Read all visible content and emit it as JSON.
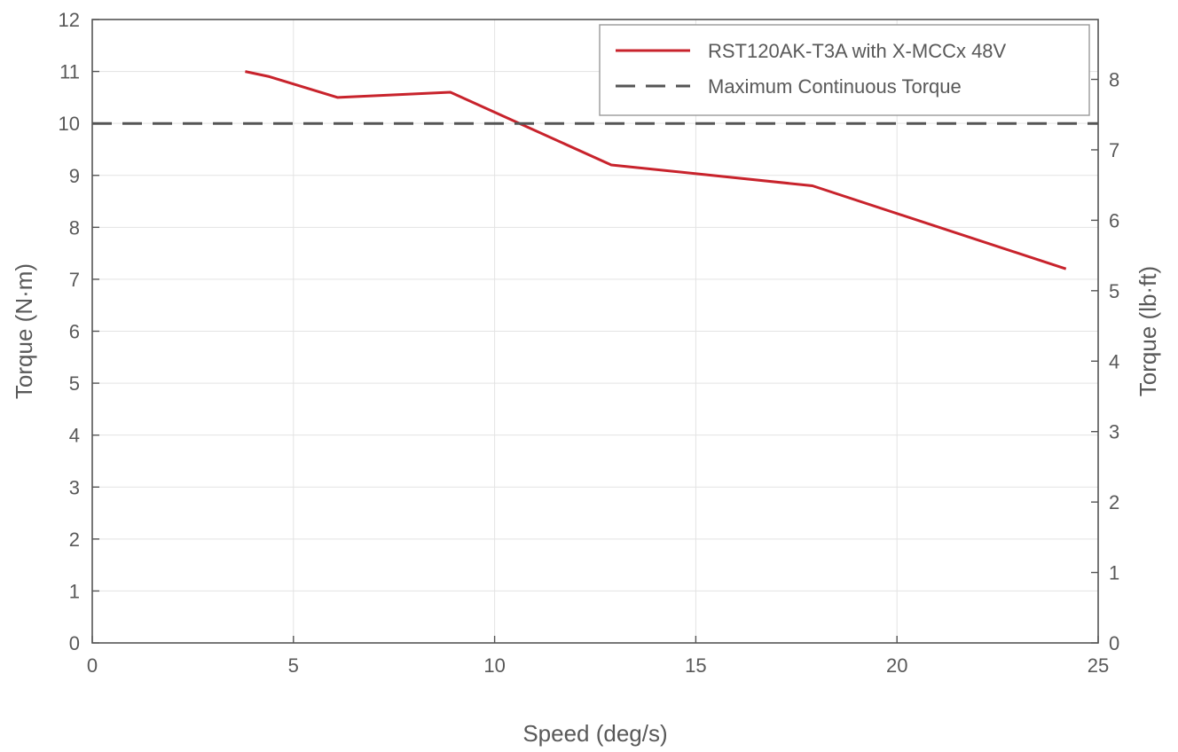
{
  "chart_data": {
    "type": "line",
    "title": "",
    "xlabel": "Speed (deg/s)",
    "ylabel": "Torque (N·m)",
    "y2label": "Torque (lb·ft)",
    "xlim": [
      0,
      25
    ],
    "ylim": [
      0,
      12
    ],
    "y2lim": [
      0,
      8.85
    ],
    "x_ticks": [
      "0",
      "5",
      "10",
      "15",
      "20",
      "25"
    ],
    "y_ticks": [
      "0",
      "1",
      "2",
      "3",
      "4",
      "5",
      "6",
      "7",
      "8",
      "9",
      "10",
      "11",
      "12"
    ],
    "y2_ticks": [
      "0",
      "1",
      "2",
      "3",
      "4",
      "5",
      "6",
      "7",
      "8"
    ],
    "grid": true,
    "legend_position": "top-right",
    "series": [
      {
        "name": "RST120AK-T3A with X-MCCx 48V",
        "color": "#c8232c",
        "style": "solid",
        "x": [
          3.8,
          4.4,
          6.1,
          8.9,
          12.9,
          17.9,
          24.2
        ],
        "y": [
          11.0,
          10.9,
          10.5,
          10.6,
          9.2,
          8.8,
          7.2
        ]
      },
      {
        "name": "Maximum Continuous Torque",
        "color": "#555555",
        "style": "dashed",
        "x": [
          0,
          25
        ],
        "y": [
          10,
          10
        ]
      }
    ]
  }
}
